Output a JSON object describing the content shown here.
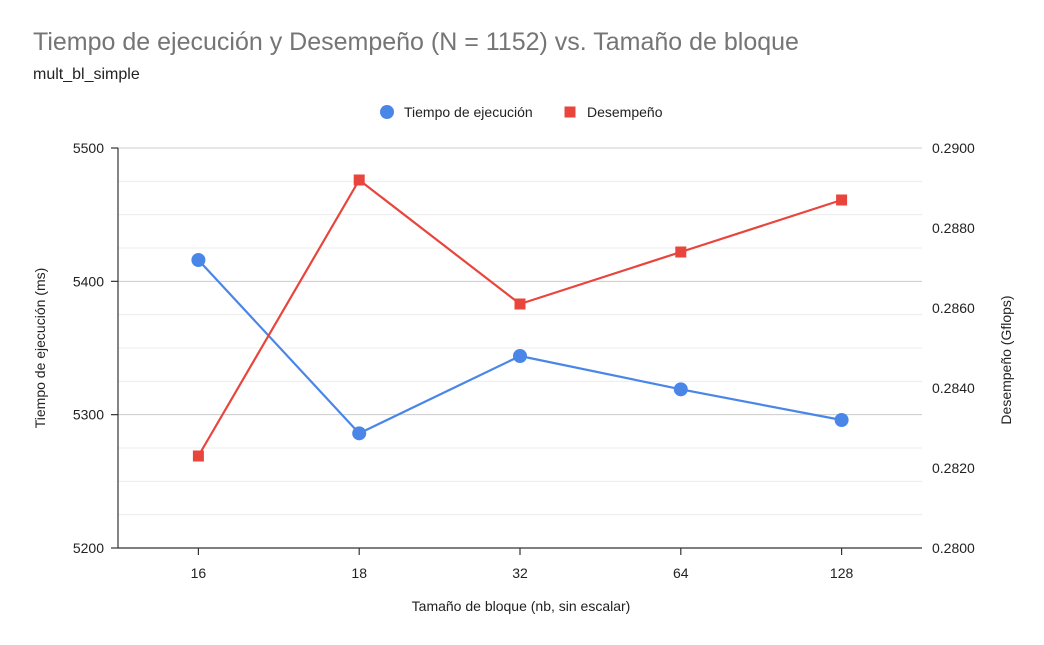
{
  "chart_data": {
    "type": "line",
    "title": "Tiempo de ejecución y Desempeño (N = 1152) vs. Tamaño de bloque",
    "subtitle": "mult_bl_simple",
    "xlabel": "Tamaño de bloque (nb, sin escalar)",
    "ylabel_left": "Tiempo de ejecución (ms)",
    "ylabel_right": "Desempeño (Gflops)",
    "categories": [
      "16",
      "18",
      "32",
      "64",
      "128"
    ],
    "ylim_left": [
      5200,
      5500
    ],
    "yticks_left": [
      "5200",
      "5300",
      "5400",
      "5500"
    ],
    "ylim_right": [
      0.28,
      0.29
    ],
    "yticks_right": [
      "0.2800",
      "0.2820",
      "0.2840",
      "0.2860",
      "0.2880",
      "0.2900"
    ],
    "grid": true,
    "legend_position": "top",
    "series": [
      {
        "name": "Tiempo de ejecución",
        "axis": "left",
        "marker": "circle",
        "color": "#4a86e8",
        "values": [
          5416,
          5286,
          5344,
          5319,
          5296
        ]
      },
      {
        "name": "Desempeño",
        "axis": "right",
        "marker": "square",
        "color": "#e8453c",
        "values": [
          0.2823,
          0.2892,
          0.2861,
          0.2874,
          0.2887
        ]
      }
    ]
  }
}
